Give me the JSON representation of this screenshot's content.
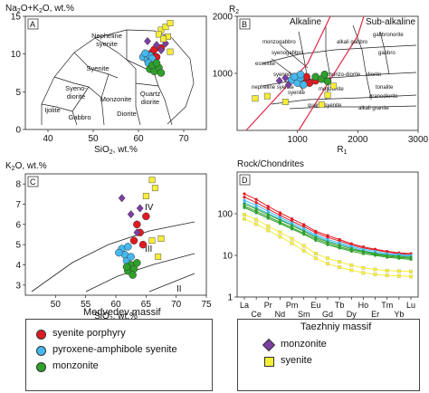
{
  "colors": {
    "syenite_porphyry": "#e01a22",
    "pyroxene_amphibole_syenite": "#45b8ee",
    "monzonite_medvedev": "#2ea02b",
    "monzonite_taezhniy": "#7c3fa3",
    "syenite_taezhniy": "#f6ee37",
    "alkaline_line": "#e0284a"
  },
  "legend": {
    "medvedev_title": "Medvedev massif",
    "medvedev_items": [
      "syenite porphyry",
      "pyroxene-amphibole syenite",
      "monzonite"
    ],
    "taezhniy_title": "Taezhniy massif",
    "taezhniy_items": [
      "monzonite",
      "syenite"
    ]
  },
  "chart_data": [
    {
      "panel": "A",
      "type": "scatter",
      "ylabel": "Na2O+K2O, wt.%",
      "ylabel_display": [
        "Na",
        "2",
        "O+K",
        "2",
        "O, wt.%"
      ],
      "xlabel_display": [
        "SiO",
        "2",
        ", wt.%"
      ],
      "xlim": [
        35,
        75
      ],
      "ylim": [
        0,
        15
      ],
      "xticks": [
        40,
        50,
        60,
        70
      ],
      "yticks": [
        0,
        5,
        10,
        15
      ],
      "field_labels": [
        "Nepheline syenite",
        "Syenite",
        "Syeno-diorite",
        "Monzonite",
        "Quartz diorite",
        "Gabbro",
        "Diorite",
        "Ijolite"
      ],
      "series": [
        {
          "name": "syenite porphyry",
          "points": [
            [
              63,
              10.2
            ],
            [
              64,
              9.6
            ],
            [
              62.5,
              9.0
            ],
            [
              65,
              10.8
            ],
            [
              63.5,
              10.6
            ]
          ]
        },
        {
          "name": "pyroxene-amphibole syenite",
          "points": [
            [
              61,
              9.6
            ],
            [
              62,
              9.2
            ],
            [
              62.5,
              9.8
            ],
            [
              61.5,
              10.1
            ],
            [
              63,
              9.4
            ],
            [
              62.2,
              8.8
            ]
          ]
        },
        {
          "name": "monzonite",
          "points": [
            [
              62.5,
              8.0
            ],
            [
              63.5,
              7.7
            ],
            [
              64.5,
              8.2
            ],
            [
              65,
              7.5
            ],
            [
              63,
              8.5
            ],
            [
              64,
              8.8
            ]
          ]
        },
        {
          "name": "monzonite",
          "points": [
            [
              64,
              11.2
            ],
            [
              62,
              11.7
            ],
            [
              65,
              10.5
            ],
            [
              66,
              11.4
            ]
          ]
        },
        {
          "name": "syenite",
          "points": [
            [
              65,
              13.2
            ],
            [
              66,
              13.6
            ],
            [
              67,
              14.1
            ],
            [
              66.5,
              12.3
            ],
            [
              64.5,
              12.6
            ],
            [
              67,
              10.3
            ],
            [
              65.5,
              12.0
            ]
          ]
        }
      ]
    },
    {
      "panel": "B",
      "type": "scatter",
      "ylabel_display": [
        "R",
        "2"
      ],
      "xlabel_display": [
        "R",
        "1"
      ],
      "xlim": [
        0,
        3000
      ],
      "ylim": [
        0,
        2000
      ],
      "xticks": [
        1000,
        2000,
        3000
      ],
      "yticks": [
        1000,
        2000
      ],
      "boundary_labels": [
        "Alkaline",
        "Sub-alkaline"
      ],
      "field_labels": [
        "monzogabbro",
        "alkali gabbro",
        "gabbronorite",
        "syenogabbro",
        "essexite",
        "syenodiorite",
        "monzo-diorite",
        "diorite",
        "nepheline syenite",
        "syenite",
        "monzonite",
        "quartz syenite",
        "tonalite",
        "granodiorite",
        "alkali granite",
        "gabbro"
      ],
      "series": [
        {
          "name": "syenite porphyry",
          "points": [
            [
              1100,
              900
            ],
            [
              1200,
              830
            ],
            [
              1300,
              870
            ],
            [
              1150,
              940
            ]
          ]
        },
        {
          "name": "pyroxene-amphibole syenite",
          "points": [
            [
              900,
              880
            ],
            [
              1000,
              830
            ],
            [
              1050,
              920
            ],
            [
              1100,
              800
            ],
            [
              950,
              940
            ],
            [
              1050,
              980
            ]
          ]
        },
        {
          "name": "monzonite",
          "points": [
            [
              1300,
              940
            ],
            [
              1400,
              900
            ],
            [
              1450,
              980
            ],
            [
              1500,
              860
            ]
          ]
        },
        {
          "name": "monzonite",
          "points": [
            [
              700,
              870
            ],
            [
              800,
              920
            ],
            [
              850,
              800
            ]
          ]
        },
        {
          "name": "syenite",
          "points": [
            [
              300,
              560
            ],
            [
              500,
              600
            ],
            [
              800,
              500
            ],
            [
              1400,
              450
            ],
            [
              1500,
              620
            ],
            [
              1600,
              780
            ]
          ]
        }
      ]
    },
    {
      "panel": "C",
      "type": "scatter",
      "ylabel": "K2O, wt.%",
      "ylabel_display": [
        "K",
        "2",
        "O, wt.%"
      ],
      "xlabel_display": [
        "SiO",
        "2",
        ", wt.%"
      ],
      "xlim": [
        45,
        75
      ],
      "ylim": [
        2.5,
        8.5
      ],
      "xticks": [
        50,
        55,
        60,
        65,
        70,
        75
      ],
      "yticks": [
        3,
        4,
        5,
        6,
        7,
        8
      ],
      "field_labels": [
        "IV",
        "III",
        "II"
      ],
      "series": [
        {
          "name": "syenite porphyry",
          "points": [
            [
              63,
              5.2
            ],
            [
              64,
              5.6
            ],
            [
              63.5,
              6.0
            ],
            [
              64.5,
              5.0
            ],
            [
              65,
              6.4
            ]
          ]
        },
        {
          "name": "pyroxene-amphibole syenite",
          "points": [
            [
              61,
              4.8
            ],
            [
              61.5,
              4.5
            ],
            [
              62,
              4.9
            ],
            [
              60.5,
              4.6
            ],
            [
              61.8,
              4.2
            ],
            [
              62.5,
              4.4
            ]
          ]
        },
        {
          "name": "monzonite",
          "points": [
            [
              62,
              3.7
            ],
            [
              62.5,
              4.0
            ],
            [
              63,
              3.8
            ],
            [
              63.5,
              4.1
            ],
            [
              62.8,
              3.5
            ],
            [
              61.8,
              3.9
            ]
          ]
        },
        {
          "name": "monzonite",
          "points": [
            [
              61,
              7.3
            ],
            [
              62.5,
              6.5
            ],
            [
              63.5,
              5.6
            ],
            [
              64,
              6.8
            ]
          ]
        },
        {
          "name": "syenite",
          "points": [
            [
              66,
              8.2
            ],
            [
              66.5,
              7.8
            ],
            [
              65,
              7.4
            ],
            [
              67.5,
              5.3
            ],
            [
              67,
              4.4
            ],
            [
              66,
              5.2
            ]
          ]
        }
      ]
    },
    {
      "panel": "D",
      "type": "line",
      "ylabel": "Rock/Chondrites",
      "yscale": "log",
      "ylim": [
        1,
        1000
      ],
      "yticks": [
        1,
        10,
        100
      ],
      "categories": [
        "La",
        "Ce",
        "Pr",
        "Nd",
        "Pm",
        "Sm",
        "Eu",
        "Gd",
        "Tb",
        "Dy",
        "Ho",
        "Er",
        "Tm",
        "Yb",
        "Lu"
      ],
      "series": [
        {
          "name": "syenite porphyry",
          "values": [
            300,
            220,
            150,
            105,
            75,
            55,
            38,
            30,
            24,
            19,
            16,
            14,
            12.5,
            11.5,
            11
          ]
        },
        {
          "name": "syenite porphyry",
          "values": [
            250,
            185,
            130,
            92,
            66,
            49,
            35,
            27,
            22,
            18,
            15,
            13.5,
            12,
            11,
            10.5
          ]
        },
        {
          "name": "pyroxene-amphibole syenite",
          "values": [
            210,
            160,
            115,
            82,
            60,
            44,
            31,
            24,
            20,
            16.5,
            14,
            12.5,
            11,
            10.5,
            10
          ]
        },
        {
          "name": "pyroxene-amphibole syenite",
          "values": [
            185,
            140,
            102,
            74,
            55,
            40,
            29,
            22,
            18.5,
            15.5,
            13,
            11.5,
            10.5,
            10,
            9.5
          ]
        },
        {
          "name": "monzonite",
          "values": [
            170,
            130,
            95,
            70,
            52,
            38,
            27,
            21,
            17.5,
            14.5,
            12.5,
            11,
            10,
            9.5,
            9
          ]
        },
        {
          "name": "monzonite",
          "values": [
            150,
            115,
            85,
            62,
            46,
            34,
            25,
            19.5,
            16,
            13.5,
            12,
            10.5,
            9.5,
            9,
            8.5
          ]
        },
        {
          "name": "monzonite",
          "values": [
            140,
            105,
            78,
            58,
            43,
            32,
            23,
            18,
            15,
            12.5,
            11,
            10,
            9,
            8.5,
            8
          ]
        },
        {
          "name": "syenite",
          "values": [
            95,
            72,
            50,
            36,
            25,
            17,
            11,
            8.5,
            7,
            5.8,
            5,
            4.6,
            4.3,
            4.2,
            4.1
          ]
        },
        {
          "name": "syenite",
          "values": [
            75,
            56,
            40,
            28,
            19.5,
            13,
            8.5,
            6.3,
            5.2,
            4.4,
            3.8,
            3.5,
            3.3,
            3.2,
            3.1
          ]
        }
      ]
    }
  ]
}
